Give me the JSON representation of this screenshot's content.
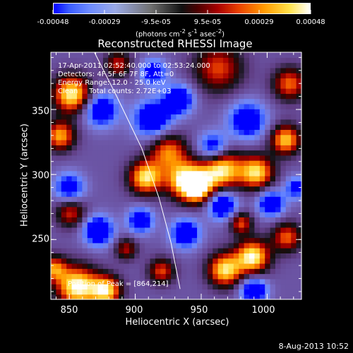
{
  "colorbar": {
    "ticks": [
      "-0.00048",
      "-0.00029",
      "-9.5e-05",
      "9.5e-05",
      "0.00029",
      "0.00048"
    ],
    "units_text": "(photons cm",
    "units_sup1": "-2",
    "units_mid": " s",
    "units_sup2": "-1",
    "units_end": " asec",
    "units_sup3": "-2",
    "units_close": ")",
    "range": [
      -0.00048,
      0.00048
    ]
  },
  "chart_data": {
    "type": "heatmap",
    "title": "Reconstructed RHESSI Image",
    "xlabel": "Heliocentric X (arcsec)",
    "ylabel": "Heliocentric Y (arcsec)",
    "xlim": [
      836,
      1026
    ],
    "ylim": [
      204,
      394
    ],
    "xticks": [
      "850",
      "900",
      "950",
      "1000"
    ],
    "yticks": [
      "250",
      "300",
      "350"
    ],
    "info_lines": [
      "17-Apr-2011 02:52:40.000 to 02:53:24.000",
      "Detectors: 4F 5F 6F 7F 8F, Att=0",
      "Energy Range: 12.0 - 25.0 keV",
      "Clean     Total counts: 2.72E+03"
    ],
    "peak_label": "Position of Peak = [864,214]",
    "blobs": [
      {
        "x": 852,
        "y": 362,
        "v": 0.00046,
        "s": 10
      },
      {
        "x": 843,
        "y": 330,
        "v": 0.00033,
        "s": 8
      },
      {
        "x": 887,
        "y": 385,
        "v": 0.00017,
        "s": 7
      },
      {
        "x": 963,
        "y": 382,
        "v": 0.00021,
        "s": 13
      },
      {
        "x": 1017,
        "y": 370,
        "v": 0.00025,
        "s": 9
      },
      {
        "x": 1014,
        "y": 327,
        "v": 0.00038,
        "s": 8
      },
      {
        "x": 925,
        "y": 318,
        "v": 0.00027,
        "s": 10
      },
      {
        "x": 908,
        "y": 298,
        "v": 0.00043,
        "s": 9
      },
      {
        "x": 938,
        "y": 296,
        "v": 0.00046,
        "s": 10
      },
      {
        "x": 965,
        "y": 304,
        "v": 0.00047,
        "s": 11
      },
      {
        "x": 992,
        "y": 302,
        "v": 0.00041,
        "s": 9
      },
      {
        "x": 948,
        "y": 289,
        "v": 0.00033,
        "s": 8
      },
      {
        "x": 851,
        "y": 271,
        "v": 0.00019,
        "s": 8
      },
      {
        "x": 980,
        "y": 263,
        "v": 0.00023,
        "s": 6
      },
      {
        "x": 1015,
        "y": 252,
        "v": 0.00024,
        "s": 8
      },
      {
        "x": 989,
        "y": 237,
        "v": 0.00047,
        "s": 9
      },
      {
        "x": 968,
        "y": 227,
        "v": 0.00042,
        "s": 9
      },
      {
        "x": 920,
        "y": 226,
        "v": 0.00021,
        "s": 7
      },
      {
        "x": 856,
        "y": 214,
        "v": 0.00049,
        "s": 11
      },
      {
        "x": 878,
        "y": 211,
        "v": 0.00041,
        "s": 8
      },
      {
        "x": 838,
        "y": 228,
        "v": 0.00026,
        "s": 7
      },
      {
        "x": 893,
        "y": 243,
        "v": 0.00014,
        "s": 6
      },
      {
        "x": 874,
        "y": 350,
        "v": -0.00029,
        "s": 9
      },
      {
        "x": 913,
        "y": 343,
        "v": -0.00031,
        "s": 10
      },
      {
        "x": 933,
        "y": 358,
        "v": -0.0003,
        "s": 8
      },
      {
        "x": 985,
        "y": 342,
        "v": -0.00028,
        "s": 10
      },
      {
        "x": 959,
        "y": 321,
        "v": -0.00027,
        "s": 8
      },
      {
        "x": 966,
        "y": 277,
        "v": -0.00032,
        "s": 8
      },
      {
        "x": 872,
        "y": 257,
        "v": -0.00034,
        "s": 8
      },
      {
        "x": 850,
        "y": 290,
        "v": -0.00024,
        "s": 8
      },
      {
        "x": 938,
        "y": 255,
        "v": -0.00028,
        "s": 8
      },
      {
        "x": 904,
        "y": 265,
        "v": -0.00026,
        "s": 7
      },
      {
        "x": 1003,
        "y": 278,
        "v": -0.0003,
        "s": 7
      },
      {
        "x": 990,
        "y": 211,
        "v": -0.00033,
        "s": 7
      },
      {
        "x": 914,
        "y": 379,
        "v": -0.00022,
        "s": 7
      },
      {
        "x": 1022,
        "y": 290,
        "v": -0.00018,
        "s": 6
      }
    ],
    "limb_curve": [
      [
        869,
        394
      ],
      [
        886,
        360
      ],
      [
        905,
        320
      ],
      [
        918,
        282
      ],
      [
        927,
        248
      ],
      [
        934,
        212
      ]
    ]
  },
  "footer_date": "8-Aug-2013 10:52"
}
